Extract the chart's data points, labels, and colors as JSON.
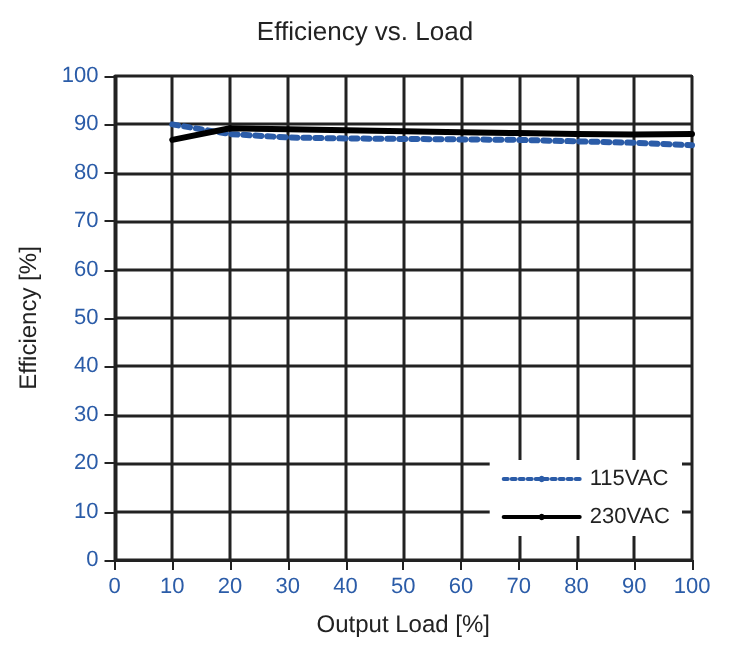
{
  "chart_data": {
    "type": "line",
    "title": "Efficiency vs. Load",
    "xlabel": "Output Load [%]",
    "ylabel": "Efficiency [%]",
    "x": [
      10,
      20,
      30,
      40,
      50,
      60,
      70,
      80,
      90,
      100
    ],
    "series": [
      {
        "name": "115VAC",
        "color": "#2b5ca8",
        "line_style": "dotted",
        "values": [
          90,
          88,
          87.3,
          87.1,
          87,
          86.9,
          86.8,
          86.5,
          86.2,
          85.7
        ]
      },
      {
        "name": "230VAC",
        "color": "#000000",
        "line_style": "solid",
        "values": [
          86.8,
          89.2,
          89,
          88.8,
          88.6,
          88.4,
          88.2,
          88,
          87.9,
          88
        ]
      }
    ],
    "xlim": [
      0,
      100
    ],
    "xticks": [
      0,
      10,
      20,
      30,
      40,
      50,
      60,
      70,
      80,
      90,
      100
    ],
    "ylim": [
      0,
      100
    ],
    "yticks": [
      0,
      10,
      20,
      30,
      40,
      50,
      60,
      70,
      80,
      90,
      100
    ],
    "grid": true,
    "legend": "bottom right",
    "marker": "none"
  }
}
